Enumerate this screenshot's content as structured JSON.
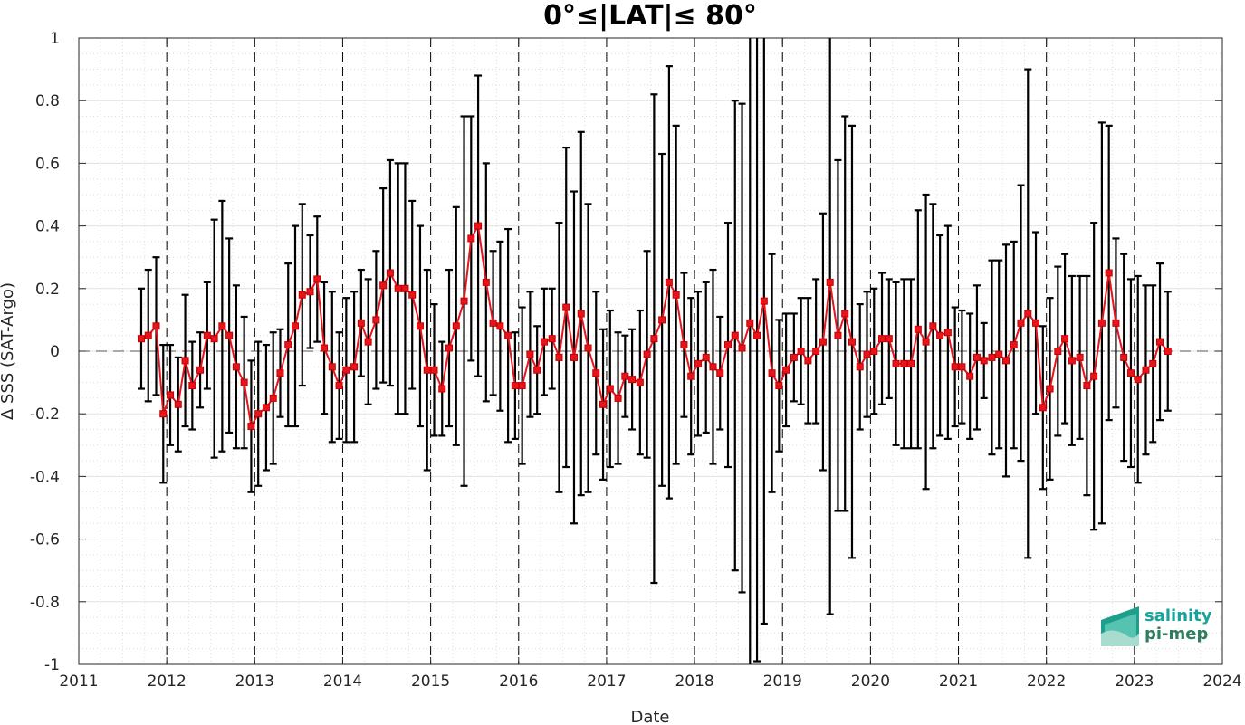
{
  "chart_data": {
    "type": "line",
    "title": "0°≤|LAT|≤ 80°",
    "xlabel": "Date",
    "ylabel": "Δ SSS (SAT-Argo)",
    "xlim": [
      2011,
      2024
    ],
    "ylim": [
      -1,
      1
    ],
    "x_ticks": [
      "2011",
      "2012",
      "2013",
      "2014",
      "2015",
      "2016",
      "2017",
      "2018",
      "2019",
      "2020",
      "2021",
      "2022",
      "2023",
      "2024"
    ],
    "y_ticks": [
      "-1",
      "-0.8",
      "-0.6",
      "-0.4",
      "-0.2",
      "0",
      "0.2",
      "0.4",
      "0.6",
      "0.8",
      "1"
    ],
    "grid": true,
    "minor_grid": true,
    "year_dashed_lines": true,
    "zero_dashed_line": true,
    "line_color": "#e8141c",
    "marker": "square",
    "errorbar_color": "#000000",
    "series": [
      {
        "x": [
          2011.71,
          2011.79,
          2011.88,
          2011.96,
          2012.04,
          2012.13,
          2012.21,
          2012.29,
          2012.38,
          2012.46,
          2012.54,
          2012.63,
          2012.71,
          2012.79,
          2012.88,
          2012.96,
          2013.04,
          2013.13,
          2013.21,
          2013.29,
          2013.38,
          2013.46,
          2013.54,
          2013.63,
          2013.71,
          2013.79,
          2013.88,
          2013.96,
          2014.04,
          2014.13,
          2014.21,
          2014.29,
          2014.38,
          2014.46,
          2014.54,
          2014.63,
          2014.71,
          2014.79,
          2014.88,
          2014.96,
          2015.04,
          2015.13,
          2015.21,
          2015.29,
          2015.38,
          2015.46,
          2015.54,
          2015.63,
          2015.71,
          2015.79,
          2015.88,
          2015.96,
          2016.04,
          2016.13,
          2016.21,
          2016.29,
          2016.38,
          2016.46,
          2016.54,
          2016.63,
          2016.71,
          2016.79,
          2016.88,
          2016.96,
          2017.04,
          2017.13,
          2017.21,
          2017.29,
          2017.38,
          2017.46,
          2017.54,
          2017.63,
          2017.71,
          2017.79,
          2017.88,
          2017.96,
          2018.04,
          2018.13,
          2018.21,
          2018.29,
          2018.38,
          2018.46,
          2018.54,
          2018.63,
          2018.71,
          2018.79,
          2018.88,
          2018.96,
          2019.04,
          2019.13,
          2019.21,
          2019.29,
          2019.38,
          2019.46,
          2019.54,
          2019.63,
          2019.71,
          2019.79,
          2019.88,
          2019.96,
          2020.04,
          2020.13,
          2020.21,
          2020.29,
          2020.38,
          2020.46,
          2020.54,
          2020.63,
          2020.71,
          2020.79,
          2020.88,
          2020.96,
          2021.04,
          2021.13,
          2021.21,
          2021.29,
          2021.38,
          2021.46,
          2021.54,
          2021.63,
          2021.71,
          2021.79,
          2021.88,
          2021.96,
          2022.04,
          2022.13,
          2022.21,
          2022.29,
          2022.38,
          2022.46,
          2022.54,
          2022.63,
          2022.71,
          2022.79,
          2022.88,
          2022.96,
          2023.04,
          2023.13,
          2023.21,
          2023.29,
          2023.38
        ],
        "y": [
          0.04,
          0.05,
          0.08,
          -0.2,
          -0.14,
          -0.17,
          -0.03,
          -0.11,
          -0.06,
          0.05,
          0.04,
          0.08,
          0.05,
          -0.05,
          -0.1,
          -0.24,
          -0.2,
          -0.18,
          -0.15,
          -0.07,
          0.02,
          0.08,
          0.18,
          0.19,
          0.23,
          0.01,
          -0.05,
          -0.11,
          -0.06,
          -0.05,
          0.09,
          0.03,
          0.1,
          0.21,
          0.25,
          0.2,
          0.2,
          0.18,
          0.08,
          -0.06,
          -0.06,
          -0.12,
          0.01,
          0.08,
          0.16,
          0.36,
          0.4,
          0.22,
          0.09,
          0.08,
          0.05,
          -0.11,
          -0.11,
          -0.01,
          -0.06,
          0.03,
          0.04,
          -0.02,
          0.14,
          -0.02,
          0.12,
          0.01,
          -0.07,
          -0.17,
          -0.12,
          -0.15,
          -0.08,
          -0.09,
          -0.1,
          -0.01,
          0.04,
          0.1,
          0.22,
          0.18,
          0.02,
          -0.08,
          -0.04,
          -0.02,
          -0.05,
          -0.07,
          0.02,
          0.05,
          0.01,
          0.09,
          0.05,
          0.16,
          -0.07,
          -0.11,
          -0.06,
          -0.02,
          0.0,
          -0.03,
          0.0,
          0.03,
          0.22,
          0.05,
          0.12,
          0.03,
          -0.05,
          -0.01,
          0.0,
          0.04,
          0.04,
          -0.04,
          -0.04,
          -0.04,
          0.07,
          0.03,
          0.08,
          0.05,
          0.06,
          -0.05,
          -0.05,
          -0.08,
          -0.02,
          -0.03,
          -0.02,
          -0.01,
          -0.03,
          0.02,
          0.09,
          0.12,
          0.09,
          -0.18,
          -0.12,
          0.0,
          0.04,
          -0.03,
          -0.02,
          -0.11,
          -0.08,
          0.09,
          0.25,
          0.09,
          -0.02,
          -0.07,
          -0.09,
          -0.06,
          -0.04,
          0.03,
          0.0
        ],
        "error": [
          0.16,
          0.21,
          0.22,
          0.22,
          0.16,
          0.15,
          0.21,
          0.14,
          0.12,
          0.17,
          0.38,
          0.4,
          0.31,
          0.26,
          0.21,
          0.21,
          0.23,
          0.2,
          0.21,
          0.14,
          0.26,
          0.32,
          0.29,
          0.18,
          0.2,
          0.21,
          0.24,
          0.17,
          0.23,
          0.24,
          0.17,
          0.2,
          0.22,
          0.31,
          0.36,
          0.4,
          0.4,
          0.3,
          0.32,
          0.32,
          0.21,
          0.15,
          0.25,
          0.38,
          0.59,
          0.39,
          0.48,
          0.38,
          0.23,
          0.27,
          0.34,
          0.17,
          0.25,
          0.2,
          0.14,
          0.17,
          0.16,
          0.43,
          0.51,
          0.53,
          0.58,
          0.46,
          0.26,
          0.24,
          0.25,
          0.21,
          0.13,
          0.16,
          0.23,
          0.33,
          0.78,
          0.53,
          0.69,
          0.54,
          0.23,
          0.25,
          0.23,
          0.24,
          0.31,
          0.18,
          0.39,
          0.75,
          0.78,
          1.1,
          1.04,
          1.03,
          0.38,
          0.21,
          0.18,
          0.14,
          0.17,
          0.2,
          0.23,
          0.41,
          1.06,
          0.56,
          0.63,
          0.69,
          0.2,
          0.2,
          0.2,
          0.21,
          0.19,
          0.26,
          0.27,
          0.27,
          0.38,
          0.47,
          0.39,
          0.32,
          0.34,
          0.19,
          0.18,
          0.2,
          0.23,
          0.12,
          0.31,
          0.3,
          0.37,
          0.33,
          0.44,
          0.78,
          0.29,
          0.26,
          0.29,
          0.27,
          0.27,
          0.27,
          0.26,
          0.35,
          0.49,
          0.64,
          0.47,
          0.27,
          0.33,
          0.3,
          0.33,
          0.27,
          0.25,
          0.25,
          0.19
        ]
      }
    ]
  },
  "logo": {
    "line1": "salinity",
    "line2": "pi-mep",
    "color1": "#1aa39a",
    "color2": "#2e7d5e"
  }
}
